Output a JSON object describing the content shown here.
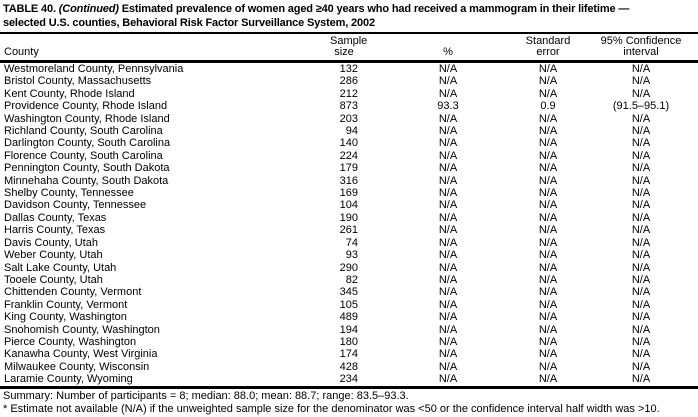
{
  "title": {
    "label": "TABLE 40.",
    "continued": "(Continued)",
    "line1_rest": "Estimated prevalence of women aged ≥40 years who had received a mammogram in their lifetime —",
    "line2": "selected U.S. counties, Behavioral Risk Factor Surveillance System, 2002"
  },
  "table": {
    "columns": [
      {
        "line1": "",
        "line2": "County"
      },
      {
        "line1": "Sample",
        "line2": "size"
      },
      {
        "line1": "",
        "line2": "%"
      },
      {
        "line1": "Standard",
        "line2": "error"
      },
      {
        "line1": "95% Confidence",
        "line2": "interval"
      }
    ],
    "rows": [
      {
        "county": "Westmoreland County, Pennsylvania",
        "sample_size": "132",
        "percent": "N/A",
        "standard_error": "N/A",
        "confidence_interval": "N/A"
      },
      {
        "county": "Bristol County, Massachusetts",
        "sample_size": "286",
        "percent": "N/A",
        "standard_error": "N/A",
        "confidence_interval": "N/A"
      },
      {
        "county": "Kent County, Rhode Island",
        "sample_size": "212",
        "percent": "N/A",
        "standard_error": "N/A",
        "confidence_interval": "N/A"
      },
      {
        "county": "Providence County, Rhode Island",
        "sample_size": "873",
        "percent": "93.3",
        "standard_error": "0.9",
        "confidence_interval": "(91.5–95.1)"
      },
      {
        "county": "Washington County, Rhode Island",
        "sample_size": "203",
        "percent": "N/A",
        "standard_error": "N/A",
        "confidence_interval": "N/A"
      },
      {
        "county": "Richland County, South Carolina",
        "sample_size": "94",
        "percent": "N/A",
        "standard_error": "N/A",
        "confidence_interval": "N/A"
      },
      {
        "county": "Darlington County, South Carolina",
        "sample_size": "140",
        "percent": "N/A",
        "standard_error": "N/A",
        "confidence_interval": "N/A"
      },
      {
        "county": "Florence County, South Carolina",
        "sample_size": "224",
        "percent": "N/A",
        "standard_error": "N/A",
        "confidence_interval": "N/A"
      },
      {
        "county": "Pennington County, South Dakota",
        "sample_size": "179",
        "percent": "N/A",
        "standard_error": "N/A",
        "confidence_interval": "N/A"
      },
      {
        "county": "Minnehaha County, South Dakota",
        "sample_size": "316",
        "percent": "N/A",
        "standard_error": "N/A",
        "confidence_interval": "N/A"
      },
      {
        "county": "Shelby County, Tennessee",
        "sample_size": "169",
        "percent": "N/A",
        "standard_error": "N/A",
        "confidence_interval": "N/A"
      },
      {
        "county": "Davidson County, Tennessee",
        "sample_size": "104",
        "percent": "N/A",
        "standard_error": "N/A",
        "confidence_interval": "N/A"
      },
      {
        "county": "Dallas County, Texas",
        "sample_size": "190",
        "percent": "N/A",
        "standard_error": "N/A",
        "confidence_interval": "N/A"
      },
      {
        "county": "Harris County, Texas",
        "sample_size": "261",
        "percent": "N/A",
        "standard_error": "N/A",
        "confidence_interval": "N/A"
      },
      {
        "county": "Davis County, Utah",
        "sample_size": "74",
        "percent": "N/A",
        "standard_error": "N/A",
        "confidence_interval": "N/A"
      },
      {
        "county": "Weber County, Utah",
        "sample_size": "93",
        "percent": "N/A",
        "standard_error": "N/A",
        "confidence_interval": "N/A"
      },
      {
        "county": "Salt Lake County, Utah",
        "sample_size": "290",
        "percent": "N/A",
        "standard_error": "N/A",
        "confidence_interval": "N/A"
      },
      {
        "county": "Tooele County, Utah",
        "sample_size": "82",
        "percent": "N/A",
        "standard_error": "N/A",
        "confidence_interval": "N/A"
      },
      {
        "county": "Chittenden County, Vermont",
        "sample_size": "345",
        "percent": "N/A",
        "standard_error": "N/A",
        "confidence_interval": "N/A"
      },
      {
        "county": "Franklin County, Vermont",
        "sample_size": "105",
        "percent": "N/A",
        "standard_error": "N/A",
        "confidence_interval": "N/A"
      },
      {
        "county": "King County, Washington",
        "sample_size": "489",
        "percent": "N/A",
        "standard_error": "N/A",
        "confidence_interval": "N/A"
      },
      {
        "county": "Snohomish County, Washington",
        "sample_size": "194",
        "percent": "N/A",
        "standard_error": "N/A",
        "confidence_interval": "N/A"
      },
      {
        "county": "Pierce County, Washington",
        "sample_size": "180",
        "percent": "N/A",
        "standard_error": "N/A",
        "confidence_interval": "N/A"
      },
      {
        "county": "Kanawha County, West Virginia",
        "sample_size": "174",
        "percent": "N/A",
        "standard_error": "N/A",
        "confidence_interval": "N/A"
      },
      {
        "county": "Milwaukee County, Wisconsin",
        "sample_size": "428",
        "percent": "N/A",
        "standard_error": "N/A",
        "confidence_interval": "N/A"
      },
      {
        "county": "Laramie County, Wyoming",
        "sample_size": "234",
        "percent": "N/A",
        "standard_error": "N/A",
        "confidence_interval": "N/A"
      }
    ]
  },
  "summary": "Summary: Number of participants = 8; median: 88.0; mean: 88.7; range: 83.5–93.3.",
  "footnote": "* Estimate not available (N/A) if the unweighted sample size for the denominator was <50 or the confidence interval half width was >10."
}
